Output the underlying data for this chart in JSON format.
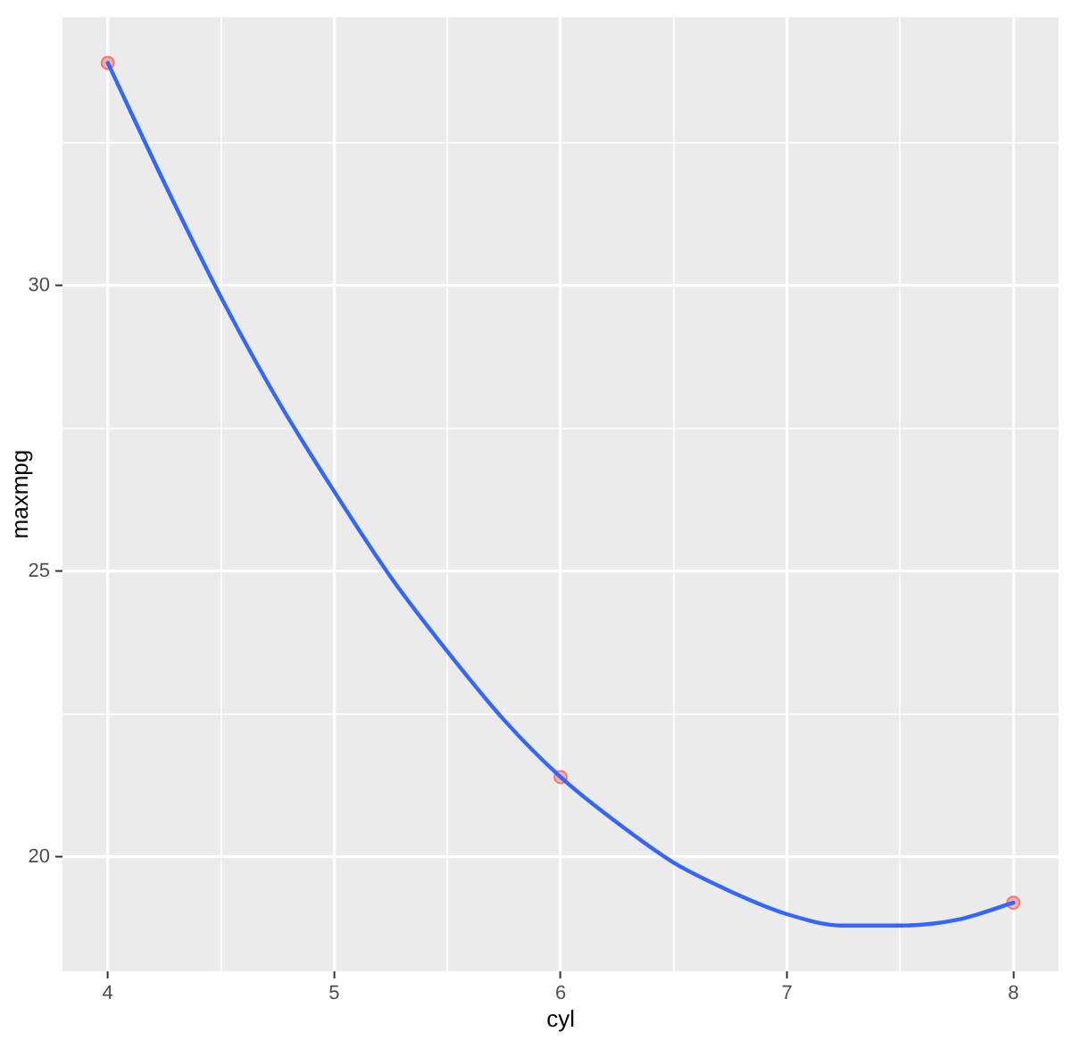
{
  "chart_data": {
    "type": "line",
    "xlabel": "cyl",
    "ylabel": "maxmpg",
    "xlim": [
      3.8,
      8.2
    ],
    "ylim": [
      18.0,
      34.7
    ],
    "xticks": [
      4,
      {
        "value": 4.5,
        "label": null
      },
      5,
      {
        "value": 5.5,
        "label": null
      },
      6,
      {
        "value": 6.5,
        "label": null
      },
      7,
      {
        "value": 7.5,
        "label": null
      },
      8
    ],
    "yticks": [
      20,
      {
        "value": 22.5,
        "label": null
      },
      25,
      {
        "value": 27.5,
        "label": null
      },
      30,
      {
        "value": 32.5,
        "label": null
      }
    ],
    "grid": true,
    "series": [
      {
        "type": "scatter",
        "marker": "circle",
        "color": "#f8766d",
        "x": [
          4,
          6,
          8
        ],
        "values": [
          33.9,
          21.4,
          19.2
        ]
      },
      {
        "marker": "none",
        "color": "#3366ff",
        "x": [
          4,
          4.25,
          4.5,
          4.75,
          5,
          5.25,
          5.5,
          5.75,
          6,
          6.25,
          6.5,
          6.75,
          7,
          7.25,
          7.5,
          7.75,
          8
        ],
        "values": [
          33.9,
          31.8,
          29.8,
          28.0,
          26.4,
          24.9,
          23.6,
          22.4,
          21.4,
          20.6,
          19.9,
          19.4,
          19.0,
          18.8,
          18.8,
          18.9,
          19.2
        ]
      }
    ]
  }
}
